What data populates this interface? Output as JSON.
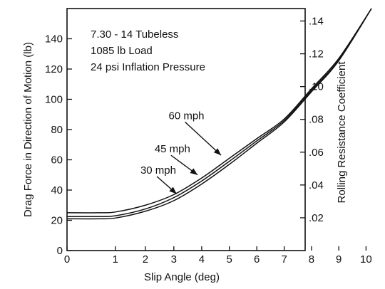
{
  "chart_data": {
    "type": "line",
    "title": "",
    "xlabel": "Slip Angle (deg)",
    "ylabel_left": "Drag Force in Direction of Motion (lb)",
    "ylabel_right": "Rolling Resistance Coefficient",
    "annotations": [
      "7.30 - 14 Tubeless",
      "1085 lb Load",
      "24 psi Inflation Pressure"
    ],
    "x_ticks": [
      0,
      1,
      2,
      3,
      4,
      5,
      6,
      7,
      8,
      9,
      10
    ],
    "x_tick_labels": [
      "0",
      "1",
      "2",
      "3",
      "4",
      "5",
      "6",
      "7",
      "8",
      "9",
      "10"
    ],
    "y_left_ticks": [
      0,
      20,
      40,
      60,
      80,
      100,
      120,
      140
    ],
    "y_left_tick_labels": [
      "0",
      "20",
      "40",
      "60",
      "80",
      "100",
      "120",
      "140"
    ],
    "y_right_ticks": [
      0.02,
      0.04,
      0.06,
      0.08,
      0.1,
      0.12,
      0.14
    ],
    "y_right_tick_labels": [
      ".02",
      ".04",
      ".06",
      ".08",
      ".10",
      ".12",
      ".14"
    ],
    "ylim_left": [
      0,
      160
    ],
    "ylim_right": [
      0,
      0.1476
    ],
    "grid": false,
    "series": [
      {
        "name": "60 mph",
        "x": [
          0,
          0.5,
          1,
          2,
          3,
          4,
          5,
          6,
          7,
          8,
          9,
          10.2
        ],
        "y": [
          25,
          25,
          25.5,
          30,
          37,
          48,
          61,
          74,
          87,
          107,
          127,
          160
        ]
      },
      {
        "name": "45 mph",
        "x": [
          0,
          0.5,
          1,
          2,
          3,
          4,
          5,
          6,
          7,
          8,
          9,
          10.2
        ],
        "y": [
          22.5,
          22.5,
          23,
          27.5,
          35,
          46,
          59,
          72.5,
          86,
          106,
          126,
          160
        ]
      },
      {
        "name": "30 mph",
        "x": [
          0,
          0.5,
          1,
          2,
          3,
          4,
          5,
          6,
          7,
          8,
          9,
          10.2
        ],
        "y": [
          21,
          21,
          21.5,
          26,
          33,
          44,
          57,
          71,
          85,
          105,
          125.5,
          160
        ]
      }
    ],
    "arrows": [
      {
        "series": "60 mph",
        "from": [
          3.4,
          85
        ],
        "to": [
          4.7,
          63
        ]
      },
      {
        "series": "45 mph",
        "from": [
          2.9,
          63
        ],
        "to": [
          3.85,
          50
        ]
      },
      {
        "series": "30 mph",
        "from": [
          2.4,
          49
        ],
        "to": [
          3.1,
          37.5
        ]
      }
    ]
  }
}
